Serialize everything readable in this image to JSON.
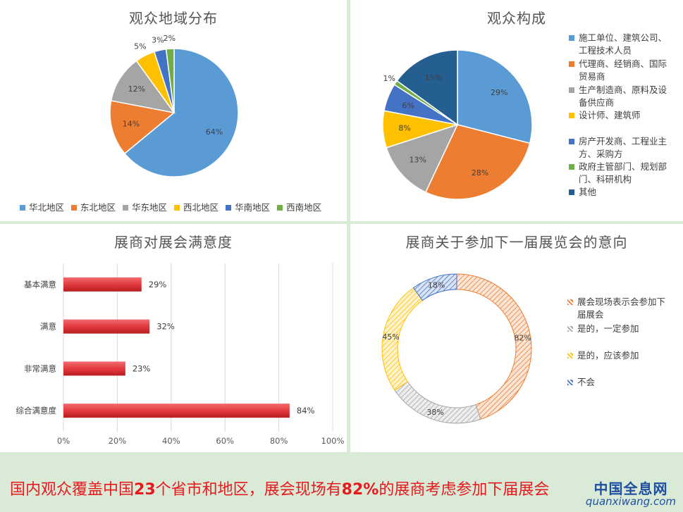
{
  "chart_data": [
    {
      "type": "pie",
      "title": "观众地域分布",
      "categories": [
        "华北地区",
        "东北地区",
        "华东地区",
        "西北地区",
        "华南地区",
        "西南地区"
      ],
      "values": [
        64,
        14,
        12,
        5,
        3,
        2
      ],
      "labels": [
        "64%",
        "14%",
        "12%",
        "5%",
        "3%",
        "2%"
      ],
      "colors": [
        "#5b9bd5",
        "#ed7d31",
        "#a5a5a5",
        "#ffc000",
        "#4472c4",
        "#70ad47"
      ],
      "legend": "bottom"
    },
    {
      "type": "pie",
      "title": "观众构成",
      "categories": [
        "施工单位、建筑公司、工程技术人员",
        "代理商、经销商、国际贸易商",
        "生产制造商、原料及设备供应商",
        "设计师、建筑师",
        "房产开发商、工程业主方、采购方",
        "政府主管部门、规划部门、科研机构",
        "其他"
      ],
      "values": [
        29,
        28,
        13,
        8,
        6,
        1,
        15
      ],
      "labels": [
        "29%",
        "28%",
        "13%",
        "8%",
        "6%",
        "1%",
        "15%"
      ],
      "colors": [
        "#5b9bd5",
        "#ed7d31",
        "#a5a5a5",
        "#ffc000",
        "#4472c4",
        "#70ad47",
        "#255e91"
      ],
      "legend": "right",
      "legend_lines": [
        [
          "施工单位、建筑公司、",
          "工程技术人员"
        ],
        [
          "代理商、经销商、国际",
          "贸易商"
        ],
        [
          "生产制造商、原料及设",
          "备供应商"
        ],
        [
          "设计师、建筑师"
        ],
        [
          "房产开发商、工程业主",
          "方、采购方"
        ],
        [
          "政府主管部门、规划部",
          "门、科研机构"
        ],
        [
          "其他"
        ]
      ]
    },
    {
      "type": "bar",
      "orientation": "horizontal",
      "title": "展商对展会满意度",
      "categories": [
        "基本满意",
        "满意",
        "非常满意",
        "综合满意度"
      ],
      "values": [
        29,
        32,
        23,
        84
      ],
      "labels": [
        "29%",
        "32%",
        "23%",
        "84%"
      ],
      "xlim": [
        0,
        100
      ],
      "xticks": [
        "0%",
        "20%",
        "40%",
        "60%",
        "80%",
        "100%"
      ],
      "grid": true,
      "color": "#e0363a"
    },
    {
      "type": "pie",
      "subtype": "doughnut",
      "title": "展商关于参加下一届展览会的意向",
      "categories": [
        "展会现场表示会参加下届展会",
        "是的，一定参加",
        "是的，应该参加",
        "不会"
      ],
      "values": [
        82,
        38,
        45,
        18
      ],
      "labels": [
        "82%",
        "38%",
        "45%",
        "18%"
      ],
      "colors": [
        "#ed7d31",
        "#a5a5a5",
        "#ffc000",
        "#4472c4"
      ],
      "legend": "right",
      "legend_lines": [
        [
          "展会现场表示会参加下",
          "届展会"
        ],
        [
          "是的，一定参加"
        ],
        [
          "是的，应该参加"
        ],
        [
          "不会"
        ]
      ]
    }
  ],
  "banner": {
    "parts": [
      {
        "text": "国内观众覆盖中国",
        "bold": false
      },
      {
        "text": "23",
        "bold": true
      },
      {
        "text": "个省市和地区，展会现场有",
        "bold": false
      },
      {
        "text": "82%",
        "bold": true
      },
      {
        "text": "的展商考虑参加下届展会",
        "bold": false
      }
    ]
  },
  "watermark": {
    "cn": "中国全息网",
    "en": "quanxiwang.com"
  }
}
